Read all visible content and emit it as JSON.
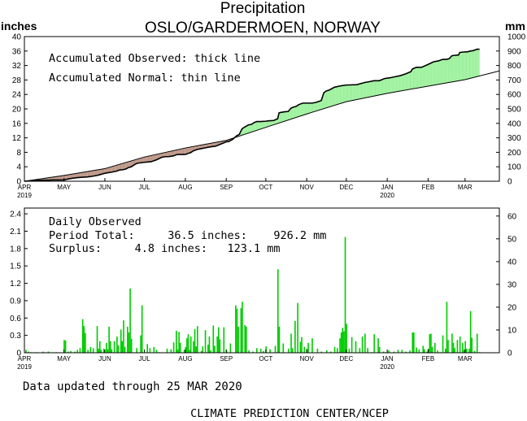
{
  "header": {
    "title": "Precipitation",
    "subtitle": "OSLO/GARDERMOEN, NORWAY",
    "left_unit": "inches",
    "right_unit": "mm"
  },
  "footer": {
    "updated": "Data updated through 25 MAR 2020",
    "source": "CLIMATE PREDICTION CENTER/NCEP"
  },
  "colors": {
    "surplus": "#98f098",
    "deficit": "#b89080",
    "bars": "#00cc00",
    "line": "#000000"
  },
  "chart_data": [
    {
      "type": "area",
      "legend": [
        "Accumulated Observed: thick line",
        "Accumulated Normal: thin line"
      ],
      "x_ticks": [
        "APR",
        "MAY",
        "JUN",
        "JUL",
        "AUG",
        "SEP",
        "OCT",
        "NOV",
        "DEC",
        "JAN",
        "FEB",
        "MAR"
      ],
      "x_year_labels": [
        {
          "month": "APR",
          "year": "2019"
        },
        {
          "month": "JAN",
          "year": "2020"
        }
      ],
      "ylim": [
        0,
        40
      ],
      "y_ticks": [
        0,
        4,
        8,
        12,
        16,
        20,
        24,
        28,
        32,
        36,
        40
      ],
      "y2lim": [
        0,
        1000
      ],
      "y2_ticks": [
        0,
        100,
        200,
        300,
        400,
        500,
        600,
        700,
        800,
        900,
        1000
      ],
      "x_days": 360,
      "observed": [
        [
          0,
          0
        ],
        [
          4,
          0.1
        ],
        [
          8,
          0.2
        ],
        [
          12,
          0.25
        ],
        [
          16,
          0.3
        ],
        [
          18,
          0.3
        ],
        [
          22,
          0.35
        ],
        [
          30,
          0.35
        ],
        [
          33,
          0.6
        ],
        [
          36,
          0.8
        ],
        [
          40,
          1.0
        ],
        [
          44,
          1.1
        ],
        [
          48,
          1.2
        ],
        [
          52,
          1.4
        ],
        [
          55,
          1.6
        ],
        [
          58,
          1.9
        ],
        [
          61,
          2.2
        ],
        [
          64,
          2.4
        ],
        [
          66,
          2.5
        ],
        [
          70,
          2.8
        ],
        [
          72,
          3.1
        ],
        [
          75,
          3.2
        ],
        [
          77,
          3.4
        ],
        [
          79,
          3.8
        ],
        [
          81,
          4.0
        ],
        [
          84,
          4.7
        ],
        [
          85,
          4.9
        ],
        [
          86,
          5.0
        ],
        [
          90,
          5.2
        ],
        [
          96,
          5.4
        ],
        [
          100,
          5.9
        ],
        [
          104,
          6.6
        ],
        [
          107,
          6.8
        ],
        [
          109,
          6.8
        ],
        [
          111,
          6.9
        ],
        [
          113,
          7.0
        ],
        [
          115,
          7.3
        ],
        [
          117,
          7.4
        ],
        [
          121,
          7.4
        ],
        [
          123,
          7.5
        ],
        [
          124,
          7.7
        ],
        [
          126,
          7.9
        ],
        [
          128,
          8.4
        ],
        [
          131,
          8.8
        ],
        [
          134,
          9.0
        ],
        [
          138,
          9.3
        ],
        [
          141,
          9.5
        ],
        [
          145,
          9.7
        ],
        [
          147,
          10.0
        ],
        [
          151,
          10.6
        ],
        [
          153,
          10.9
        ],
        [
          155,
          11.0
        ],
        [
          158,
          11.6
        ],
        [
          161,
          12.6
        ],
        [
          163,
          13.0
        ],
        [
          164,
          13.8
        ],
        [
          165,
          14.5
        ],
        [
          167,
          15.0
        ],
        [
          170,
          15.6
        ],
        [
          172,
          15.7
        ],
        [
          174,
          16.2
        ],
        [
          176,
          16.5
        ],
        [
          179,
          16.5
        ],
        [
          183,
          16.6
        ],
        [
          185,
          16.7
        ],
        [
          189,
          16.8
        ],
        [
          192,
          17.3
        ],
        [
          193,
          18.9
        ],
        [
          194,
          19.0
        ],
        [
          197,
          19.2
        ],
        [
          200,
          19.3
        ],
        [
          202,
          20.2
        ],
        [
          204,
          20.5
        ],
        [
          206,
          20.7
        ],
        [
          208,
          21.2
        ],
        [
          211,
          21.6
        ],
        [
          214,
          21.6
        ],
        [
          218,
          21.6
        ],
        [
          221,
          21.8
        ],
        [
          225,
          22.3
        ],
        [
          227,
          24.5
        ],
        [
          229,
          25.0
        ],
        [
          231,
          25.2
        ],
        [
          235,
          26.0
        ],
        [
          240,
          26.4
        ],
        [
          244,
          26.6
        ],
        [
          252,
          26.7
        ],
        [
          256,
          27.1
        ],
        [
          258,
          27.3
        ],
        [
          261,
          27.5
        ],
        [
          265,
          27.8
        ],
        [
          269,
          27.8
        ],
        [
          273,
          28.4
        ],
        [
          277,
          28.6
        ],
        [
          281,
          28.9
        ],
        [
          285,
          29.2
        ],
        [
          289,
          29.7
        ],
        [
          293,
          30.3
        ],
        [
          294,
          31.0
        ],
        [
          297,
          31.5
        ],
        [
          301,
          31.5
        ],
        [
          306,
          32.3
        ],
        [
          310,
          33.0
        ],
        [
          314,
          33.3
        ],
        [
          317,
          33.7
        ],
        [
          320,
          33.7
        ],
        [
          322,
          33.9
        ],
        [
          324,
          34.7
        ],
        [
          326,
          34.8
        ],
        [
          329,
          34.9
        ],
        [
          330,
          35.6
        ],
        [
          332,
          35.7
        ],
        [
          336,
          35.8
        ],
        [
          338,
          36.0
        ],
        [
          340,
          36.1
        ],
        [
          343,
          36.5
        ],
        [
          345,
          36.5
        ]
      ],
      "normal": [
        [
          0,
          0
        ],
        [
          30,
          1.6
        ],
        [
          61,
          3.5
        ],
        [
          91,
          6.7
        ],
        [
          122,
          9.2
        ],
        [
          153,
          11.3
        ],
        [
          183,
          14.9
        ],
        [
          214,
          18.6
        ],
        [
          244,
          22.0
        ],
        [
          275,
          24.3
        ],
        [
          306,
          26.3
        ],
        [
          334,
          28.1
        ],
        [
          360,
          30.5
        ]
      ]
    },
    {
      "type": "bar",
      "labels": [
        "Daily Observed",
        "Period Total:     36.5 inches:    926.2 mm",
        "Surplus:     4.8 inches:   123.1 mm"
      ],
      "x_ticks": [
        "APR",
        "MAY",
        "JUN",
        "JUL",
        "AUG",
        "SEP",
        "OCT",
        "NOV",
        "DEC",
        "JAN",
        "FEB",
        "MAR"
      ],
      "x_year_labels": [
        {
          "month": "APR",
          "year": "2019"
        },
        {
          "month": "JAN",
          "year": "2020"
        }
      ],
      "ylim": [
        0,
        2.5
      ],
      "y_ticks": [
        "0",
        "0.3",
        "0.6",
        "0.9",
        "1.2",
        "1.5",
        "1.8",
        "2.1",
        "2.4"
      ],
      "y2lim": [
        0,
        63.5
      ],
      "y2_ticks": [
        0,
        10,
        20,
        30,
        40,
        50,
        60
      ],
      "daily": [
        [
          1,
          0.05
        ],
        [
          3,
          0.02
        ],
        [
          5,
          0.01
        ],
        [
          9,
          0.01
        ],
        [
          14,
          0.02
        ],
        [
          18,
          0.02
        ],
        [
          24,
          0.01
        ],
        [
          30,
          0.22
        ],
        [
          31,
          0.21
        ],
        [
          33,
          0.02
        ],
        [
          35,
          0.03
        ],
        [
          38,
          0.02
        ],
        [
          40,
          0.05
        ],
        [
          42,
          0.08
        ],
        [
          44,
          0.58
        ],
        [
          45,
          0.46
        ],
        [
          46,
          0.34
        ],
        [
          48,
          0.05
        ],
        [
          50,
          0.1
        ],
        [
          52,
          0.08
        ],
        [
          55,
          0.46
        ],
        [
          56,
          0.07
        ],
        [
          57,
          0.2
        ],
        [
          58,
          0.05
        ],
        [
          60,
          0.07
        ],
        [
          62,
          0.17
        ],
        [
          63,
          0.06
        ],
        [
          64,
          0.45
        ],
        [
          65,
          0.2
        ],
        [
          66,
          0.06
        ],
        [
          68,
          0.2
        ],
        [
          70,
          0.28
        ],
        [
          71,
          0.13
        ],
        [
          73,
          0.4
        ],
        [
          74,
          0.2
        ],
        [
          75,
          0.56
        ],
        [
          76,
          0.1
        ],
        [
          78,
          0.45
        ],
        [
          79,
          0.35
        ],
        [
          80,
          1.11
        ],
        [
          81,
          0.24
        ],
        [
          85,
          0.08
        ],
        [
          88,
          0.3
        ],
        [
          89,
          0.82
        ],
        [
          93,
          0.15
        ],
        [
          95,
          0.08
        ],
        [
          98,
          0.1
        ],
        [
          100,
          0.05
        ],
        [
          102,
          0.01
        ],
        [
          108,
          0.07
        ],
        [
          111,
          0.06
        ],
        [
          113,
          0.18
        ],
        [
          115,
          0.38
        ],
        [
          116,
          0.06
        ],
        [
          117,
          0.36
        ],
        [
          118,
          0.17
        ],
        [
          121,
          0.05
        ],
        [
          122,
          0.1
        ],
        [
          123,
          0.25
        ],
        [
          124,
          0.32
        ],
        [
          125,
          0.05
        ],
        [
          126,
          0.28
        ],
        [
          128,
          0.2
        ],
        [
          129,
          0.41
        ],
        [
          130,
          0.11
        ],
        [
          131,
          0.46
        ],
        [
          134,
          0.03
        ],
        [
          135,
          0.11
        ],
        [
          137,
          0.39
        ],
        [
          139,
          0.14
        ],
        [
          140,
          0.28
        ],
        [
          141,
          0.04
        ],
        [
          143,
          0.47
        ],
        [
          144,
          0.12
        ],
        [
          146,
          0.28
        ],
        [
          147,
          0.44
        ],
        [
          148,
          0.23
        ],
        [
          151,
          0.44
        ],
        [
          153,
          0.05
        ],
        [
          156,
          0.16
        ],
        [
          160,
          0.82
        ],
        [
          161,
          0.76
        ],
        [
          162,
          0.45
        ],
        [
          164,
          0.77
        ],
        [
          165,
          0.88
        ],
        [
          167,
          0.48
        ],
        [
          168,
          0.45
        ],
        [
          170,
          0.04
        ],
        [
          173,
          0.02
        ],
        [
          176,
          0.08
        ],
        [
          179,
          0.07
        ],
        [
          181,
          0.03
        ],
        [
          183,
          0.11
        ],
        [
          186,
          0.06
        ],
        [
          190,
          0.12
        ],
        [
          192,
          1.44
        ],
        [
          193,
          0.45
        ],
        [
          196,
          0.16
        ],
        [
          200,
          0.07
        ],
        [
          202,
          0.33
        ],
        [
          203,
          0.08
        ],
        [
          205,
          0.55
        ],
        [
          207,
          0.86
        ],
        [
          209,
          0.19
        ],
        [
          210,
          0.27
        ],
        [
          212,
          0.1
        ],
        [
          214,
          0.07
        ],
        [
          215,
          0.17
        ],
        [
          218,
          0.25
        ],
        [
          222,
          0.07
        ],
        [
          225,
          0.02
        ],
        [
          229,
          0.04
        ],
        [
          232,
          0.02
        ],
        [
          235,
          0.1
        ],
        [
          237,
          0.08
        ],
        [
          239,
          0.25
        ],
        [
          240,
          0.35
        ],
        [
          241,
          0.43
        ],
        [
          242,
          0.37
        ],
        [
          243,
          2.0
        ],
        [
          244,
          0.5
        ],
        [
          246,
          0.07
        ],
        [
          248,
          0.27
        ],
        [
          251,
          0.2
        ],
        [
          254,
          0.08
        ],
        [
          256,
          0.28
        ],
        [
          258,
          0.33
        ],
        [
          260,
          0.08
        ],
        [
          263,
          0.01
        ],
        [
          265,
          0.32
        ],
        [
          268,
          0.25
        ],
        [
          269,
          0.1
        ],
        [
          272,
          0.02
        ],
        [
          274,
          0.01
        ],
        [
          276,
          0.04
        ],
        [
          280,
          0.02
        ],
        [
          283,
          0.05
        ],
        [
          286,
          0.05
        ],
        [
          289,
          0.02
        ],
        [
          292,
          0.04
        ],
        [
          294,
          0.35
        ],
        [
          295,
          0.35
        ],
        [
          297,
          0.09
        ],
        [
          299,
          0.06
        ],
        [
          302,
          0.12
        ],
        [
          303,
          0.06
        ],
        [
          305,
          0.02
        ],
        [
          306,
          0.07
        ],
        [
          307,
          0.32
        ],
        [
          308,
          0.33
        ],
        [
          309,
          0.1
        ],
        [
          311,
          0.17
        ],
        [
          313,
          0.04
        ],
        [
          315,
          0.01
        ],
        [
          317,
          0.3
        ],
        [
          319,
          0.07
        ],
        [
          320,
          0.88
        ],
        [
          321,
          0.22
        ],
        [
          324,
          0.33
        ],
        [
          325,
          0.17
        ],
        [
          326,
          0.08
        ],
        [
          328,
          0.22
        ],
        [
          330,
          0.28
        ],
        [
          332,
          0.17
        ],
        [
          333,
          0.05
        ],
        [
          334,
          0.2
        ],
        [
          335,
          0.07
        ],
        [
          337,
          0.07
        ],
        [
          338,
          0.72
        ],
        [
          339,
          0.26
        ],
        [
          341,
          0.03
        ],
        [
          343,
          0.33
        ],
        [
          345,
          0.01
        ]
      ]
    }
  ]
}
